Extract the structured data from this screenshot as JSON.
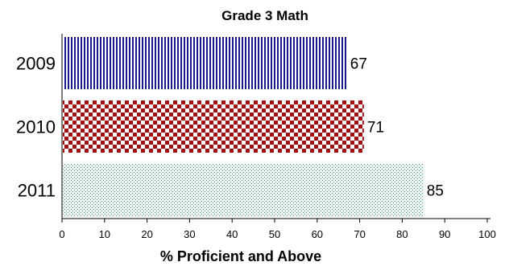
{
  "chart_data": {
    "type": "bar",
    "orientation": "horizontal",
    "title": "Grade 3 Math",
    "xlabel": "% Proficient and Above",
    "ylabel": "",
    "categories": [
      "2009",
      "2010",
      "2011"
    ],
    "values": [
      67,
      71,
      85
    ],
    "value_labels": [
      "67",
      "71",
      "85"
    ],
    "xlim": [
      0,
      100
    ],
    "x_ticks": [
      "0",
      "10",
      "20",
      "30",
      "40",
      "50",
      "60",
      "70",
      "80",
      "90",
      "100"
    ],
    "grid": false,
    "legend": "none",
    "bar_styles": [
      {
        "pattern": "vertical-stripes",
        "color": "#1a1a8c"
      },
      {
        "pattern": "checkerboard",
        "color": "#a01010"
      },
      {
        "pattern": "dots",
        "color": "#2e8b6e"
      }
    ]
  }
}
